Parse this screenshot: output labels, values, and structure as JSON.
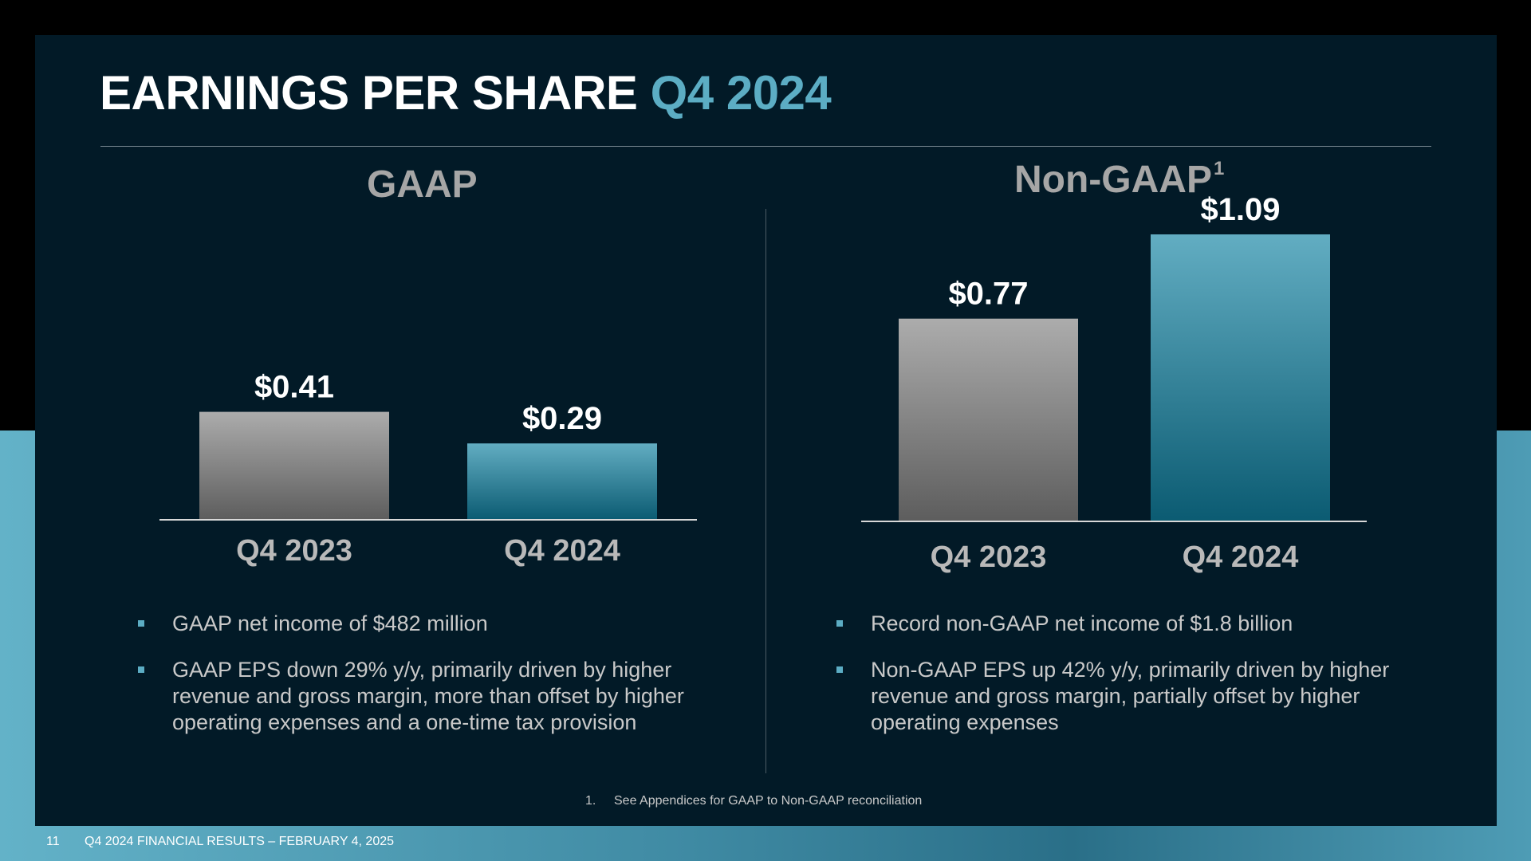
{
  "slide": {
    "title_main": "EARNINGS PER SHARE",
    "title_accent": "Q4 2024",
    "footnote_number": "1.",
    "footnote_text": "See Appendices for GAAP to Non-GAAP reconciliation",
    "page_number": "11",
    "footer_text": "Q4 2024 FINANCIAL RESULTS – FEBRUARY 4, 2025"
  },
  "gaap": {
    "heading": "GAAP",
    "bullets": [
      "GAAP net income of $482 million",
      "GAAP EPS down 29% y/y, primarily driven by higher revenue and gross margin, more than offset by higher operating expenses and a one-time tax provision"
    ]
  },
  "nongaap": {
    "heading": "Non-GAAP",
    "heading_sup": "1",
    "bullets": [
      "Record non-GAAP net income of $1.8 billion",
      "Non-GAAP EPS up 42% y/y, primarily driven by higher revenue and gross margin, partially offset by higher operating expenses"
    ]
  },
  "colors": {
    "prior_year": "#8e8e8e",
    "current_year": "#4fa3bb",
    "accent": "#5cadc4",
    "panel": "#021a27"
  },
  "chart_data": [
    {
      "type": "bar",
      "title": "GAAP",
      "categories": [
        "Q4 2023",
        "Q4 2024"
      ],
      "values": [
        0.41,
        0.29
      ],
      "value_labels": [
        "$0.41",
        "$0.29"
      ],
      "bar_colors": [
        "prior_year",
        "current_year"
      ]
    },
    {
      "type": "bar",
      "title": "Non-GAAP",
      "categories": [
        "Q4 2023",
        "Q4 2024"
      ],
      "values": [
        0.77,
        1.09
      ],
      "value_labels": [
        "$0.77",
        "$1.09"
      ],
      "bar_colors": [
        "prior_year",
        "current_year"
      ]
    }
  ]
}
